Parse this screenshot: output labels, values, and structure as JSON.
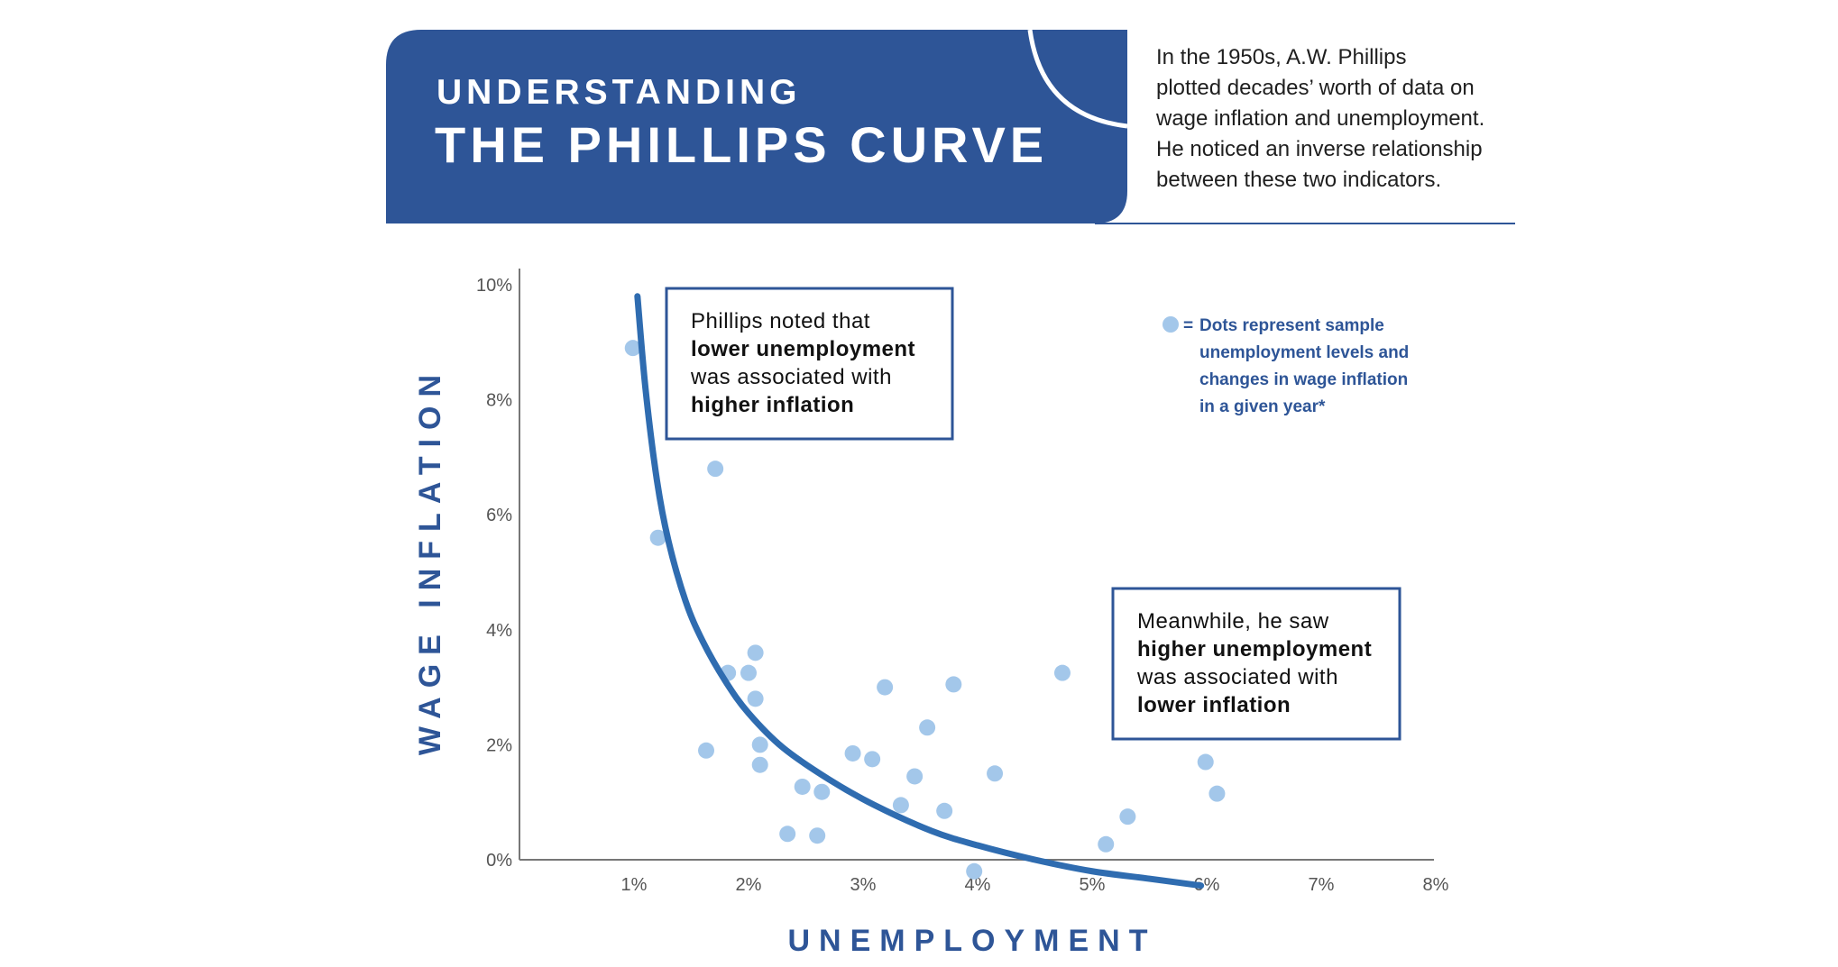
{
  "colors": {
    "brand": "#2e5597",
    "curve": "#2f6cb0",
    "dot": "#a3c7ea",
    "axis": "#777777",
    "text": "#1f1f1f",
    "background": "#ffffff"
  },
  "header": {
    "title_line1": "UNDERSTANDING",
    "title_line2": "THE PHILLIPS CURVE",
    "intro": [
      "In the 1950s, A.W. Phillips",
      "plotted decades’ worth of data on",
      "wage inflation and unemployment.",
      "He noticed an inverse relationship",
      "between these two indicators."
    ]
  },
  "annotations": {
    "top": [
      [
        {
          "t": "Phillips noted that",
          "b": false
        }
      ],
      [
        {
          "t": "lower unemployment",
          "b": true
        }
      ],
      [
        {
          "t": "was associated with",
          "b": false
        }
      ],
      [
        {
          "t": "higher inflation",
          "b": true
        }
      ]
    ],
    "bottom": [
      [
        {
          "t": "Meanwhile, he saw",
          "b": false
        }
      ],
      [
        {
          "t": "higher unemployment",
          "b": true
        }
      ],
      [
        {
          "t": "was associated with",
          "b": false
        }
      ],
      [
        {
          "t": "lower inflation",
          "b": true
        }
      ]
    ]
  },
  "legend": {
    "marker_label": "=",
    "lines": [
      "Dots represent sample",
      "unemployment levels and",
      "changes in wage inflation",
      "in a given year*"
    ]
  },
  "chart_data": {
    "type": "scatter",
    "title": "UNDERSTANDING THE PHILLIPS CURVE",
    "xlabel": "UNEMPLOYMENT",
    "ylabel": "WAGE INFLATION",
    "xlim": [
      0,
      8
    ],
    "ylim": [
      0,
      10
    ],
    "x_ticks": [
      1,
      2,
      3,
      4,
      5,
      6,
      7,
      8
    ],
    "x_tick_labels": [
      "1%",
      "2%",
      "3%",
      "4%",
      "5%",
      "6%",
      "7%",
      "8%"
    ],
    "y_ticks": [
      0,
      2,
      4,
      6,
      8,
      10
    ],
    "y_tick_labels": [
      "0%",
      "2%",
      "4%",
      "6%",
      "8%",
      "10%"
    ],
    "grid": false,
    "legend_position": "top-right",
    "points": [
      {
        "x": 0.99,
        "y": 8.9
      },
      {
        "x": 1.71,
        "y": 6.8
      },
      {
        "x": 1.21,
        "y": 5.6
      },
      {
        "x": 2.06,
        "y": 3.6
      },
      {
        "x": 1.82,
        "y": 3.25
      },
      {
        "x": 2.0,
        "y": 3.25
      },
      {
        "x": 2.06,
        "y": 2.8
      },
      {
        "x": 1.63,
        "y": 1.9
      },
      {
        "x": 2.1,
        "y": 2.0
      },
      {
        "x": 2.1,
        "y": 1.65
      },
      {
        "x": 2.47,
        "y": 1.27
      },
      {
        "x": 2.64,
        "y": 1.18
      },
      {
        "x": 2.34,
        "y": 0.45
      },
      {
        "x": 2.6,
        "y": 0.42
      },
      {
        "x": 2.91,
        "y": 1.85
      },
      {
        "x": 3.08,
        "y": 1.75
      },
      {
        "x": 3.19,
        "y": 3.0
      },
      {
        "x": 3.56,
        "y": 2.3
      },
      {
        "x": 3.79,
        "y": 3.05
      },
      {
        "x": 3.45,
        "y": 1.45
      },
      {
        "x": 3.33,
        "y": 0.95
      },
      {
        "x": 3.71,
        "y": 0.85
      },
      {
        "x": 4.15,
        "y": 1.5
      },
      {
        "x": 3.97,
        "y": -0.2
      },
      {
        "x": 4.74,
        "y": 3.25
      },
      {
        "x": 5.12,
        "y": 0.27
      },
      {
        "x": 5.31,
        "y": 0.75
      },
      {
        "x": 5.99,
        "y": 1.7
      },
      {
        "x": 6.09,
        "y": 1.15
      }
    ],
    "curve": {
      "name": "Phillips curve",
      "x": [
        1.03,
        1.1,
        1.2,
        1.3,
        1.45,
        1.6,
        1.8,
        2.0,
        2.3,
        2.7,
        3.1,
        3.6,
        4.0,
        4.5,
        5.0,
        5.5,
        5.95
      ],
      "y": [
        9.8,
        8.2,
        6.6,
        5.55,
        4.5,
        3.8,
        3.1,
        2.55,
        1.95,
        1.4,
        0.95,
        0.5,
        0.25,
        0.0,
        -0.2,
        -0.33,
        -0.45
      ]
    }
  }
}
